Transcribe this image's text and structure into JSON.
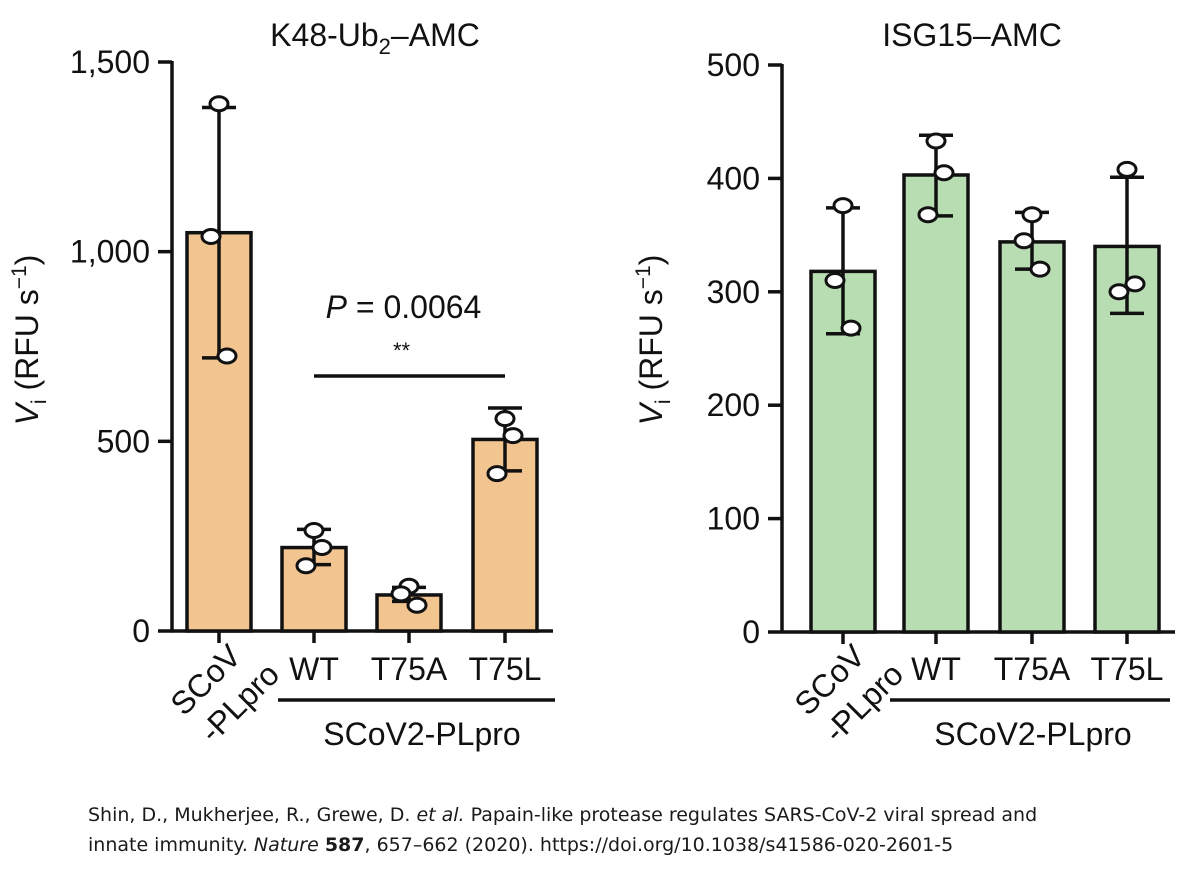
{
  "chart_data": [
    {
      "type": "bar",
      "title_main": "K48-Ub",
      "title_sub": "2",
      "title_tail": "–AMC",
      "ylabel_main": "V",
      "ylabel_sub": "i",
      "ylabel_unit": " (RFU s",
      "ylabel_sup": "−1",
      "ylabel_close": ")",
      "ylim": [
        0,
        1500
      ],
      "yticks": [
        0,
        500,
        1000,
        1500
      ],
      "ytick_labels": [
        "0",
        "500",
        "1,000",
        "1,500"
      ],
      "categories": [
        "SCoV-PLpro",
        "WT",
        "T75A",
        "T75L"
      ],
      "category_labels": [
        [
          "SCoV",
          "-PLpro"
        ],
        [
          "WT"
        ],
        [
          "T75A"
        ],
        [
          "T75L"
        ]
      ],
      "group_label": "SCoV2-PLpro",
      "values": [
        1050,
        220,
        95,
        505
      ],
      "errors": [
        [
          720,
          1380
        ],
        [
          175,
          268
        ],
        [
          78,
          115
        ],
        [
          422,
          588
        ]
      ],
      "points": [
        [
          1390,
          1040,
          725
        ],
        [
          265,
          220,
          172
        ],
        [
          118,
          98,
          68
        ],
        [
          560,
          515,
          415
        ]
      ],
      "annotation_p": "P = 0.0064",
      "annotation_stars": "**",
      "bracket": [
        "WT",
        "T75L"
      ],
      "bar_color": "#f2c48f"
    },
    {
      "type": "bar",
      "title": "ISG15–AMC",
      "ylabel_main": "V",
      "ylabel_sub": "i",
      "ylabel_unit": " (RFU s",
      "ylabel_sup": "−1",
      "ylabel_close": ")",
      "ylim": [
        0,
        500
      ],
      "yticks": [
        0,
        100,
        200,
        300,
        400,
        500
      ],
      "ytick_labels": [
        "0",
        "100",
        "200",
        "300",
        "400",
        "500"
      ],
      "categories": [
        "SCoV-PLpro",
        "WT",
        "T75A",
        "T75L"
      ],
      "category_labels": [
        [
          "SCoV",
          "-PLpro"
        ],
        [
          "WT"
        ],
        [
          "T75A"
        ],
        [
          "T75L"
        ]
      ],
      "group_label": "SCoV2-PLpro",
      "values": [
        318,
        403,
        344,
        340
      ],
      "errors": [
        [
          263,
          374
        ],
        [
          367,
          438
        ],
        [
          320,
          370
        ],
        [
          281,
          401
        ]
      ],
      "points": [
        [
          376,
          310,
          268
        ],
        [
          433,
          405,
          368
        ],
        [
          368,
          345,
          320
        ],
        [
          408,
          307,
          300
        ]
      ],
      "bar_color": "#b9ddb3"
    }
  ],
  "citation": {
    "authors": "Shin, D., Mukherjee, R., Grewe, D. ",
    "etal": "et al.",
    "title_l1": " Papain-like protease regulates SARS-CoV-2 viral spread and",
    "title_l2": "innate immunity. ",
    "journal": "Nature",
    "space": " ",
    "volume": "587",
    "rest": ", 657–662 (2020). https://doi.org/10.1038/s41586-020-2601-5"
  }
}
